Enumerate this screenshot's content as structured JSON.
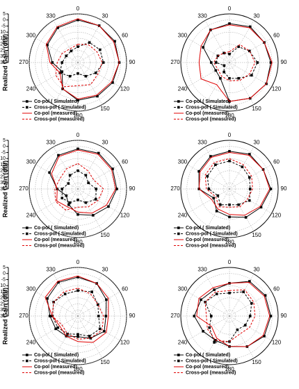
{
  "chart_data": [
    {
      "type": "polar",
      "ylabel": "Realized Gain (dBi)",
      "rlim": [
        -35,
        5
      ],
      "rticks": [
        5,
        0,
        -5,
        -10,
        -15,
        -20,
        -25,
        -30,
        -35
      ],
      "thetaticks": [
        0,
        30,
        60,
        90,
        120,
        150,
        180,
        240,
        270,
        300,
        330
      ],
      "theta": [
        0,
        30,
        60,
        90,
        120,
        150,
        180,
        210,
        240,
        270,
        300,
        330
      ],
      "series": [
        {
          "name": "Co-pol ( Simulated)",
          "color": "#000000",
          "style": "solid",
          "marker": "square",
          "values": [
            0,
            0,
            0,
            -1,
            -2,
            -3,
            -4,
            -10,
            -20,
            -14,
            -6,
            -2
          ]
        },
        {
          "name": "Cross-pol ( Simulated)",
          "color": "#000000",
          "style": "dash",
          "marker": "square",
          "values": [
            -22,
            -16,
            -14,
            -14,
            -18,
            -22,
            -26,
            -22,
            -18,
            -22,
            -24,
            -24
          ]
        },
        {
          "name": "Co-pol (measured)",
          "color": "#e00000",
          "style": "solid",
          "values": [
            1,
            0,
            -1,
            -1,
            -3,
            -4,
            -5,
            -10,
            -18,
            -12,
            -5,
            -1
          ]
        },
        {
          "name": "Cross-pol (measured)",
          "color": "#e00000",
          "style": "dash",
          "values": [
            -20,
            -18,
            -17,
            -15,
            -16,
            -14,
            -16,
            -12,
            -14,
            -18,
            -20,
            -22
          ]
        }
      ]
    },
    {
      "type": "polar",
      "rlim": [
        -35,
        5
      ],
      "thetaticks": [
        0,
        30,
        60,
        90,
        120,
        150,
        180,
        240,
        270,
        300,
        330
      ],
      "theta": [
        0,
        30,
        60,
        90,
        120,
        150,
        180,
        210,
        240,
        270,
        300,
        330
      ],
      "series": [
        {
          "name": "Co-pol ( Simulated)",
          "color": "#000000",
          "style": "solid",
          "marker": "square",
          "values": [
            -3,
            -1,
            -2,
            -1,
            0,
            -1,
            -3,
            -20,
            -22,
            -20,
            -10,
            -4
          ]
        },
        {
          "name": "Cross-pol ( Simulated)",
          "color": "#000000",
          "style": "dash",
          "marker": "square",
          "values": [
            -28,
            -20,
            -16,
            -12,
            -14,
            -20,
            -22,
            -26,
            -30,
            -24,
            -24,
            -26
          ]
        },
        {
          "name": "Co-pol (measured)",
          "color": "#e00000",
          "style": "solid",
          "values": [
            -4,
            -2,
            -2,
            0,
            0,
            -1,
            -3,
            -14,
            -8,
            -10,
            -8,
            -4
          ]
        },
        {
          "name": "Cross-pol (measured)",
          "color": "#e00000",
          "style": "dash",
          "values": [
            -26,
            -18,
            -16,
            -14,
            -16,
            -18,
            -20,
            -22,
            -24,
            -22,
            -24,
            -26
          ]
        }
      ]
    },
    {
      "type": "polar",
      "ylabel": "Realized Gain (dBi)",
      "rlim": [
        -35,
        5
      ],
      "rticks": [
        5,
        0,
        -5,
        -10,
        -15,
        -20,
        -25,
        -30,
        -35
      ],
      "thetaticks": [
        0,
        30,
        60,
        90,
        120,
        150,
        180,
        240,
        270,
        300,
        330
      ],
      "theta": [
        0,
        30,
        60,
        90,
        120,
        150,
        180,
        210,
        240,
        270,
        300,
        330
      ],
      "series": [
        {
          "name": "Co-pol ( Simulated)",
          "color": "#000000",
          "style": "solid",
          "marker": "square",
          "values": [
            -2,
            -1,
            -2,
            -3,
            -6,
            -10,
            -14,
            -20,
            -24,
            -18,
            -8,
            -3
          ]
        },
        {
          "name": "Cross-pol ( Simulated)",
          "color": "#000000",
          "style": "dash",
          "marker": "square",
          "values": [
            -20,
            -22,
            -25,
            -20,
            -18,
            -22,
            -26,
            -22,
            -20,
            -22,
            -26,
            -22
          ]
        },
        {
          "name": "Co-pol (measured)",
          "color": "#e00000",
          "style": "solid",
          "values": [
            -3,
            -2,
            -3,
            -4,
            -8,
            -12,
            -16,
            -18,
            -15,
            -18,
            -10,
            -4
          ]
        },
        {
          "name": "Cross-pol (measured)",
          "color": "#e00000",
          "style": "dash",
          "values": [
            -14,
            -18,
            -20,
            -14,
            -16,
            -18,
            -20,
            -15,
            -14,
            -16,
            -18,
            -16
          ]
        }
      ]
    },
    {
      "type": "polar",
      "rlim": [
        -35,
        5
      ],
      "thetaticks": [
        0,
        30,
        60,
        90,
        120,
        150,
        180,
        240,
        270,
        300,
        330
      ],
      "theta": [
        0,
        30,
        60,
        90,
        120,
        150,
        180,
        210,
        240,
        270,
        300,
        330
      ],
      "series": [
        {
          "name": "Co-pol ( Simulated)",
          "color": "#000000",
          "style": "solid",
          "marker": "square",
          "values": [
            -4,
            -2,
            -3,
            -1,
            -5,
            -8,
            -12,
            -14,
            -20,
            -10,
            -6,
            -4
          ]
        },
        {
          "name": "Cross-pol ( Simulated)",
          "color": "#000000",
          "style": "dash",
          "marker": "square",
          "values": [
            -12,
            -14,
            -16,
            -18,
            -16,
            -20,
            -22,
            -20,
            -24,
            -18,
            -14,
            -12
          ]
        },
        {
          "name": "Co-pol (measured)",
          "color": "#e00000",
          "style": "solid",
          "values": [
            -5,
            -3,
            -3,
            -2,
            -6,
            -10,
            -14,
            -16,
            -18,
            -10,
            -7,
            -5
          ]
        },
        {
          "name": "Cross-pol (measured)",
          "color": "#e00000",
          "style": "dash",
          "values": [
            -10,
            -12,
            -14,
            -16,
            -18,
            -18,
            -20,
            -18,
            -22,
            -16,
            -12,
            -10
          ]
        }
      ]
    },
    {
      "type": "polar",
      "ylabel": "Realized Gain (dBi)",
      "rlim": [
        -35,
        5
      ],
      "rticks": [
        5,
        0,
        -5,
        -10,
        -15,
        -20,
        -25,
        -30,
        -35
      ],
      "thetaticks": [
        0,
        30,
        60,
        90,
        120,
        150,
        180,
        240,
        270,
        300,
        330
      ],
      "theta": [
        0,
        30,
        60,
        90,
        120,
        150,
        180,
        210,
        240,
        270,
        300,
        330
      ],
      "series": [
        {
          "name": "Co-pol ( Simulated)",
          "color": "#000000",
          "style": "solid",
          "marker": "square",
          "values": [
            -3,
            -4,
            -8,
            -12,
            -10,
            -14,
            -18,
            -16,
            -14,
            -12,
            -6,
            -3
          ]
        },
        {
          "name": "Cross-pol ( Simulated)",
          "color": "#000000",
          "style": "dash",
          "marker": "square",
          "values": [
            -14,
            -12,
            -16,
            -18,
            -14,
            -16,
            -20,
            -18,
            -16,
            -14,
            -12,
            -14
          ]
        },
        {
          "name": "Co-pol (measured)",
          "color": "#e00000",
          "style": "solid",
          "values": [
            -2,
            -4,
            -6,
            -10,
            -8,
            -10,
            -14,
            -16,
            -18,
            -14,
            -4,
            -2
          ]
        },
        {
          "name": "Cross-pol (measured)",
          "color": "#e00000",
          "style": "dash",
          "values": [
            -12,
            -14,
            -16,
            -14,
            -12,
            -14,
            -16,
            -18,
            -20,
            -14,
            -12,
            -12
          ]
        }
      ]
    },
    {
      "type": "polar",
      "rlim": [
        -35,
        5
      ],
      "thetaticks": [
        0,
        30,
        60,
        90,
        120,
        150,
        180,
        240,
        270,
        300,
        330
      ],
      "theta": [
        0,
        30,
        60,
        90,
        120,
        150,
        180,
        210,
        240,
        270,
        300,
        330
      ],
      "series": [
        {
          "name": "Co-pol ( Simulated)",
          "color": "#000000",
          "style": "solid",
          "marker": "square",
          "values": [
            -8,
            -2,
            -1,
            -1,
            -2,
            -6,
            -10,
            -12,
            -10,
            -6,
            -8,
            -10
          ]
        },
        {
          "name": "Cross-pol ( Simulated)",
          "color": "#000000",
          "style": "dash",
          "marker": "square",
          "values": [
            -16,
            -12,
            -14,
            -18,
            -20,
            -22,
            -14,
            -10,
            -16,
            -20,
            -12,
            -14
          ]
        },
        {
          "name": "Co-pol (measured)",
          "color": "#e00000",
          "style": "solid",
          "values": [
            -8,
            -3,
            -2,
            -2,
            -3,
            -6,
            -10,
            -14,
            -18,
            -8,
            -6,
            -8
          ]
        },
        {
          "name": "Cross-pol (measured)",
          "color": "#e00000",
          "style": "dash",
          "values": [
            -14,
            -10,
            -12,
            -14,
            -16,
            -18,
            -14,
            -12,
            -14,
            -16,
            -12,
            -12
          ]
        }
      ]
    }
  ]
}
